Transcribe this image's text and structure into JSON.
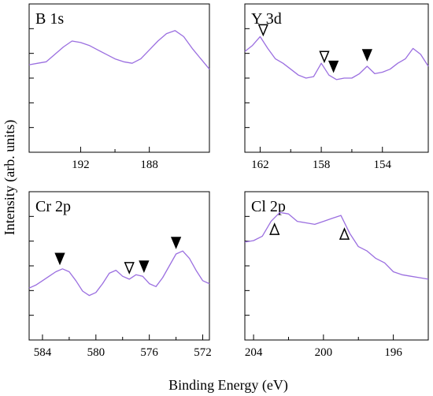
{
  "figure": {
    "ylabel": "Intensity (arb. units)",
    "xlabel": "Binding Energy (eV)",
    "line_color": "#9b6fe0"
  },
  "chart_data": [
    {
      "type": "line",
      "title": "B 1s",
      "xlabel": "",
      "ylabel": "",
      "xlim": [
        195,
        184.5
      ],
      "ylim": [
        0,
        1
      ],
      "xticks": [
        192,
        188
      ],
      "x": [
        195,
        194.5,
        194,
        193.5,
        193,
        192.5,
        192,
        191.5,
        191,
        190.5,
        190,
        189.5,
        189,
        188.5,
        188,
        187.5,
        187,
        186.5,
        186,
        185.5,
        185,
        184.5
      ],
      "y": [
        0.59,
        0.6,
        0.61,
        0.66,
        0.71,
        0.75,
        0.74,
        0.72,
        0.69,
        0.66,
        0.63,
        0.61,
        0.6,
        0.63,
        0.69,
        0.75,
        0.8,
        0.82,
        0.78,
        0.7,
        0.63,
        0.56
      ],
      "markers": []
    },
    {
      "type": "line",
      "title": "Y 3d",
      "xlabel": "",
      "ylabel": "",
      "xlim": [
        163,
        151
      ],
      "ylim": [
        0,
        1
      ],
      "xticks": [
        162,
        158,
        154
      ],
      "x": [
        163,
        162.5,
        162,
        161.5,
        161,
        160.5,
        160,
        159.5,
        159,
        158.5,
        158,
        157.5,
        157,
        156.5,
        156,
        155.5,
        155,
        154.5,
        154,
        153.5,
        153,
        152.5,
        152,
        151.5,
        151
      ],
      "y": [
        0.68,
        0.72,
        0.78,
        0.7,
        0.63,
        0.6,
        0.56,
        0.52,
        0.5,
        0.51,
        0.6,
        0.52,
        0.49,
        0.5,
        0.5,
        0.53,
        0.58,
        0.53,
        0.54,
        0.56,
        0.6,
        0.63,
        0.7,
        0.66,
        0.58
      ],
      "markers": [
        {
          "x": 161.8,
          "style": "open",
          "direction": "down"
        },
        {
          "x": 157.8,
          "style": "open",
          "direction": "down"
        },
        {
          "x": 157.2,
          "style": "filled",
          "direction": "down"
        },
        {
          "x": 155.0,
          "style": "filled",
          "direction": "down"
        }
      ]
    },
    {
      "type": "line",
      "title": "Cr 2p",
      "xlabel": "",
      "ylabel": "",
      "xlim": [
        585,
        571.5
      ],
      "ylim": [
        0,
        1
      ],
      "xticks": [
        584,
        580,
        576,
        572
      ],
      "x": [
        585,
        584.5,
        584,
        583.5,
        583,
        582.5,
        582,
        581.5,
        581,
        580.5,
        580,
        579.5,
        579,
        578.5,
        578,
        577.5,
        577,
        576.5,
        576,
        575.5,
        575,
        574.5,
        574,
        573.5,
        573,
        572.5,
        572,
        571.5
      ],
      "y": [
        0.35,
        0.37,
        0.4,
        0.43,
        0.46,
        0.48,
        0.46,
        0.4,
        0.33,
        0.3,
        0.32,
        0.38,
        0.45,
        0.47,
        0.43,
        0.41,
        0.44,
        0.43,
        0.38,
        0.36,
        0.42,
        0.5,
        0.58,
        0.6,
        0.55,
        0.47,
        0.4,
        0.38
      ],
      "markers": [
        {
          "x": 582.7,
          "style": "filled",
          "direction": "down"
        },
        {
          "x": 577.5,
          "style": "open",
          "direction": "down"
        },
        {
          "x": 576.4,
          "style": "filled",
          "direction": "down"
        },
        {
          "x": 574.0,
          "style": "filled",
          "direction": "down"
        }
      ]
    },
    {
      "type": "line",
      "title": "Cl 2p",
      "xlabel": "",
      "ylabel": "",
      "xlim": [
        204.5,
        194
      ],
      "ylim": [
        0,
        1
      ],
      "xticks": [
        204,
        200,
        196
      ],
      "x": [
        204.5,
        204,
        203.5,
        203,
        202.5,
        202,
        201.5,
        201,
        200.5,
        200,
        199.5,
        199,
        198.5,
        198,
        197.5,
        197,
        196.5,
        196,
        195.5,
        195,
        194.5,
        194
      ],
      "y": [
        0.66,
        0.67,
        0.7,
        0.8,
        0.86,
        0.85,
        0.8,
        0.79,
        0.78,
        0.8,
        0.82,
        0.84,
        0.72,
        0.63,
        0.6,
        0.55,
        0.52,
        0.46,
        0.44,
        0.43,
        0.42,
        0.41
      ],
      "markers": [
        {
          "x": 202.8,
          "style": "open",
          "direction": "up"
        },
        {
          "x": 198.8,
          "style": "open",
          "direction": "up"
        }
      ]
    }
  ]
}
